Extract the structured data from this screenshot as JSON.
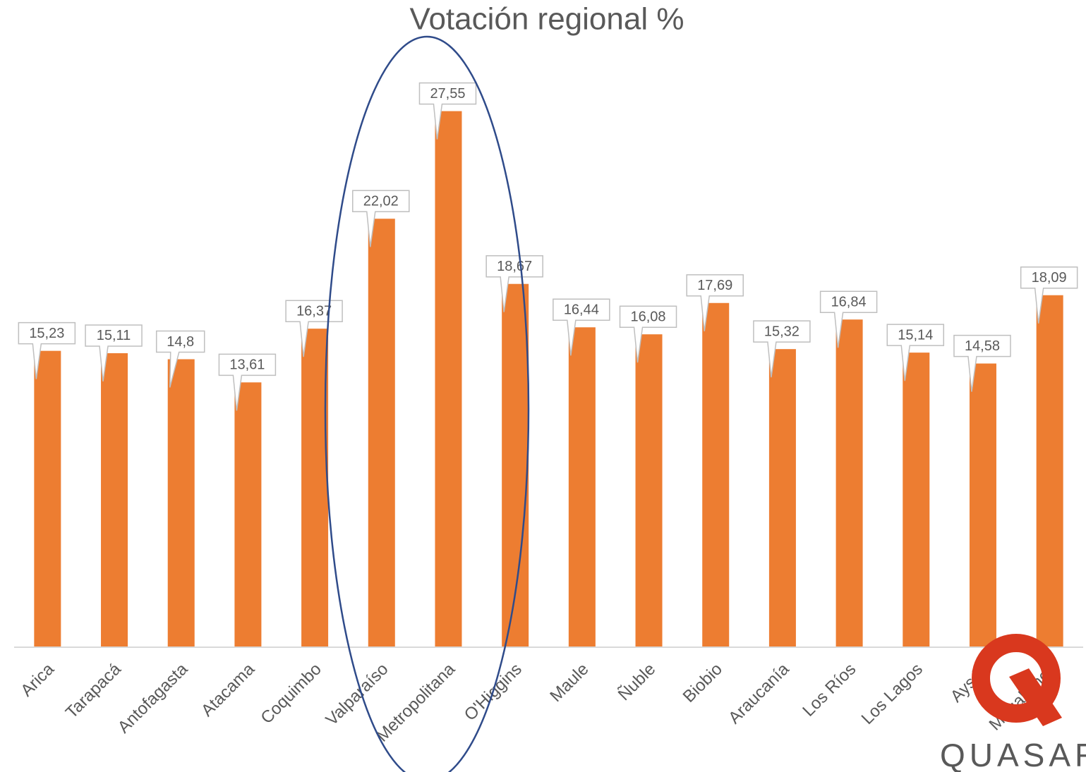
{
  "chart_data": {
    "type": "bar",
    "title": "Votación regional %",
    "categories": [
      "Arica",
      "Tarapacá",
      "Antofagasta",
      "Atacama",
      "Coquimbo",
      "Valparaíso",
      "Metropolitana",
      "O'Higgins",
      "Maule",
      "Ñuble",
      "Biobio",
      "Araucanía",
      "Los Ríos",
      "Los Lagos",
      "Aysén",
      "Magallanes"
    ],
    "values": [
      15.23,
      15.11,
      14.8,
      13.61,
      16.37,
      22.02,
      27.55,
      18.67,
      16.44,
      16.08,
      17.69,
      15.32,
      16.84,
      15.14,
      14.58,
      18.09
    ],
    "value_labels": [
      "15,23",
      "15,11",
      "14,8",
      "13,61",
      "16,37",
      "22,02",
      "27,55",
      "18,67",
      "16,44",
      "16,08",
      "17,69",
      "15,32",
      "16,84",
      "15,14",
      "14,58",
      "18,09"
    ],
    "color": "#ed7d31",
    "ylim": [
      0,
      30
    ]
  },
  "logo": "QUASAR"
}
